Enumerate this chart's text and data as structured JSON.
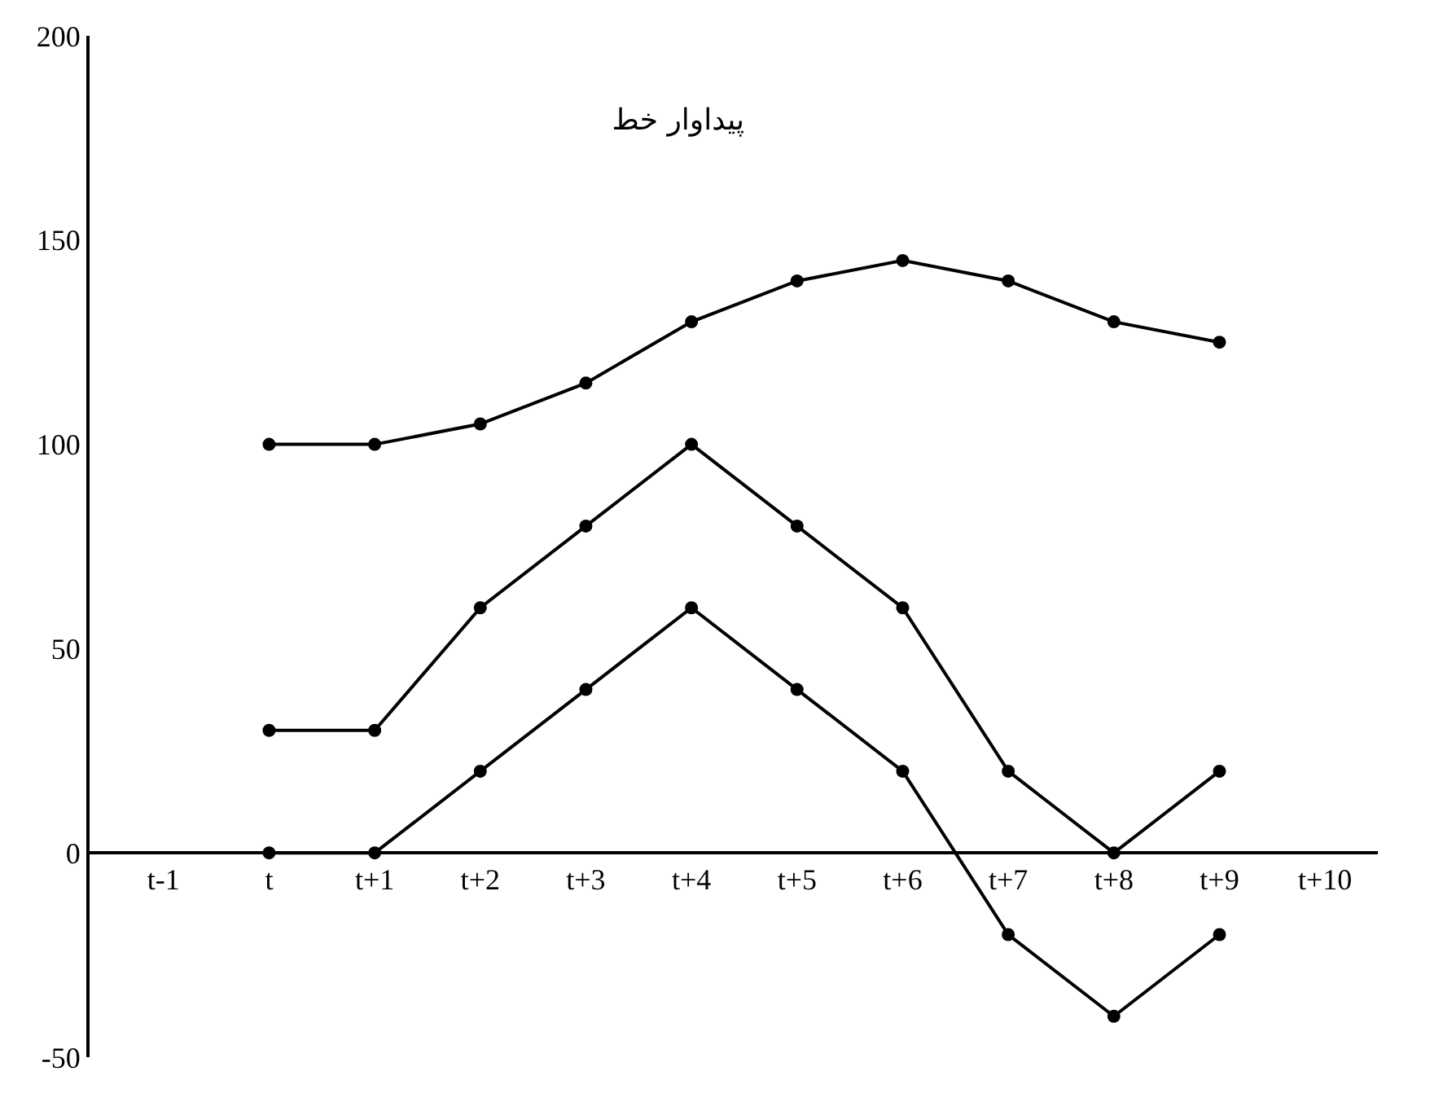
{
  "chart_data": {
    "type": "line",
    "title": "پیداوار خط",
    "categories": [
      "t-1",
      "t",
      "t+1",
      "t+2",
      "t+3",
      "t+4",
      "t+5",
      "t+6",
      "t+7",
      "t+8",
      "t+9",
      "t+10"
    ],
    "series": [
      {
        "color": "#000000",
        "values": [
          null,
          100,
          100,
          105,
          115,
          130,
          140,
          145,
          140,
          130,
          125,
          null
        ]
      },
      {
        "color": "#000000",
        "values": [
          null,
          30,
          30,
          60,
          80,
          100,
          80,
          60,
          20,
          0,
          20,
          null
        ]
      },
      {
        "color": "#000000",
        "values": [
          null,
          0,
          0,
          20,
          40,
          60,
          40,
          20,
          -20,
          -40,
          -20,
          null
        ]
      }
    ],
    "ylim": [
      -50,
      200
    ],
    "yticks": [
      -50,
      0,
      50,
      100,
      150,
      200
    ],
    "marker": "circle",
    "line_style": "solid"
  }
}
